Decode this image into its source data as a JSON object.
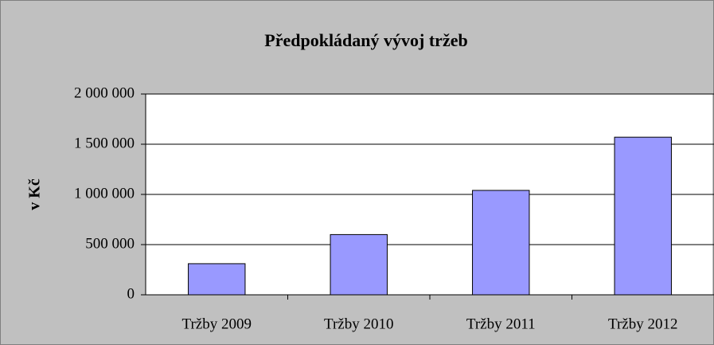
{
  "chart_data": {
    "type": "bar",
    "title": "Předpokládaný vývoj tržeb",
    "y_axis_label": "v Kč",
    "categories": [
      "Tržby 2009",
      "Tržby 2010",
      "Tržby 2011",
      "Tržby 2012"
    ],
    "values": [
      310000,
      600000,
      1040000,
      1570000
    ],
    "color": "#9999ff",
    "ylim": [
      0,
      2000000
    ],
    "yticks": [
      0,
      {
        "value": 500000,
        "label": "500 000"
      },
      {
        "value": 1000000,
        "label": "1 000 000"
      },
      {
        "value": 1500000,
        "label": "1 500 000"
      },
      {
        "value": 2000000,
        "label": "2 000 000"
      }
    ],
    "grid": true
  }
}
